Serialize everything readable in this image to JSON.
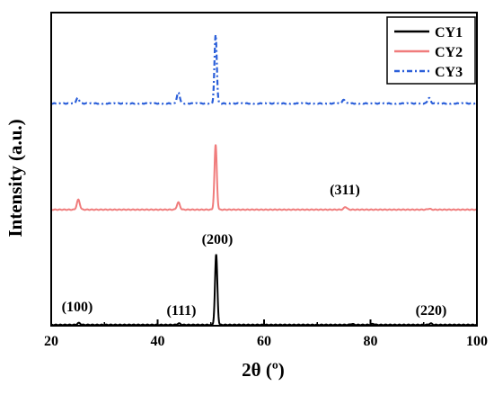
{
  "chart_data": {
    "type": "line",
    "xlabel": "2θ (º)",
    "ylabel": "Intensity (a.u.)",
    "xlim": [
      20,
      100
    ],
    "xticks": [
      "20",
      "40",
      "60",
      "80",
      "100"
    ],
    "y_ticks_shown": false,
    "grid": false,
    "legend": {
      "placement": "top-right",
      "entries": [
        "CY1",
        "CY2",
        "CY3"
      ]
    },
    "series": [
      {
        "name": "CY1",
        "color": "#000000",
        "dash": "solid",
        "baseline": 0,
        "peaks": [
          {
            "x": 25.2,
            "height": 2
          },
          {
            "x": 44.0,
            "height": 1.5
          },
          {
            "x": 51.0,
            "height": 78
          },
          {
            "x": 76.5,
            "height": 1
          },
          {
            "x": 80.5,
            "height": 1
          },
          {
            "x": 91.3,
            "height": 1.5
          }
        ]
      },
      {
        "name": "CY2",
        "color": "#f07c7c",
        "dash": "solid",
        "baseline": 128,
        "peaks": [
          {
            "x": 25.1,
            "height": 11
          },
          {
            "x": 43.9,
            "height": 8
          },
          {
            "x": 50.9,
            "height": 72
          },
          {
            "x": 75.3,
            "height": 3
          },
          {
            "x": 91.0,
            "height": 1
          }
        ]
      },
      {
        "name": "CY3",
        "color": "#2b5fd9",
        "dash": "dashdot",
        "baseline": 246,
        "peaks": [
          {
            "x": 25.0,
            "height": 6
          },
          {
            "x": 43.9,
            "height": 12
          },
          {
            "x": 50.9,
            "height": 76
          },
          {
            "x": 75.0,
            "height": 4
          },
          {
            "x": 91.0,
            "height": 6
          }
        ]
      }
    ],
    "annotations": [
      "(100)",
      "(111)",
      "(200)",
      "(220)",
      "(311)"
    ]
  }
}
